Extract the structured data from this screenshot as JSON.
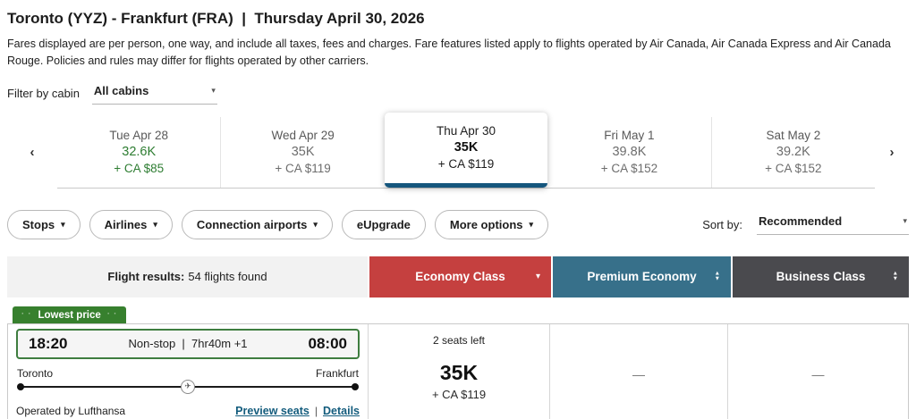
{
  "page": {
    "title": "Toronto (YYZ) - Frankfurt (FRA)  |  Thursday April 30, 2026",
    "disclaimer": "Fares displayed are per person, one way, and include all taxes, fees and charges. Fare features listed apply to flights operated by Air Canada, Air Canada Express and Air Canada Rouge. Policies and rules may differ for flights operated by other carriers."
  },
  "icons": {
    "chevron_left": "‹",
    "chevron_right": "›",
    "caret_down": "▾",
    "sort_up": "▲",
    "sort_down": "▼",
    "plane": "✈"
  },
  "cabin_filter": {
    "label": "Filter by cabin",
    "value": "All cabins"
  },
  "date_carousel": {
    "items": [
      {
        "date": "Tue Apr 28",
        "points": "32.6K",
        "cash": "+ CA $85"
      },
      {
        "date": "Wed Apr 29",
        "points": "35K",
        "cash": "+ CA $119"
      },
      {
        "date": "Thu Apr 30",
        "points": "35K",
        "cash": "+ CA $119"
      },
      {
        "date": "Fri May 1",
        "points": "39.8K",
        "cash": "+ CA $152"
      },
      {
        "date": "Sat May 2",
        "points": "39.2K",
        "cash": "+ CA $152"
      }
    ],
    "selected_index": 2
  },
  "filters": {
    "pills": [
      {
        "label": "Stops"
      },
      {
        "label": "Airlines"
      },
      {
        "label": "Connection airports"
      },
      {
        "label": "eUpgrade"
      },
      {
        "label": "More options"
      }
    ],
    "sort_label": "Sort by:",
    "sort_value": "Recommended"
  },
  "results_header": {
    "summary_label": "Flight results:",
    "summary_count": "54 flights found",
    "columns": [
      {
        "label": "Economy Class",
        "color": "#c5403f"
      },
      {
        "label": "Premium Economy",
        "color": "#37708a"
      },
      {
        "label": "Business Class",
        "color": "#4a4a4e"
      }
    ]
  },
  "flight": {
    "badge": "Lowest price",
    "departure_time": "18:20",
    "route_meta": "Non-stop  |  7hr40m +1",
    "arrival_time": "08:00",
    "origin": "Toronto",
    "destination": "Frankfurt",
    "operated_by": "Operated by Lufthansa",
    "preview_seats_link": "Preview seats",
    "links_separator": "|",
    "details_link": "Details",
    "fares": {
      "economy": {
        "seats_left": "2 seats left",
        "points": "35K",
        "cash": "+ CA $119"
      },
      "premium": {
        "value": "—"
      },
      "business": {
        "value": "—"
      }
    }
  }
}
